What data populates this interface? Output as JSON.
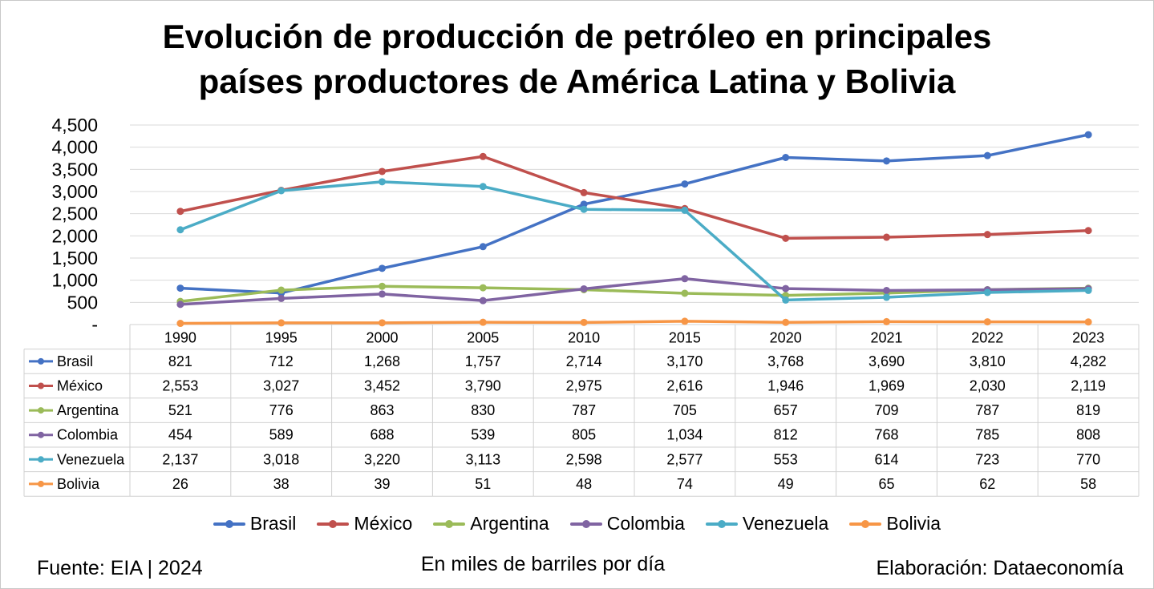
{
  "title_lines": [
    "Evolución de producción de petróleo en principales",
    "países productores de América Latina y Bolivia"
  ],
  "chart_data": {
    "type": "line",
    "categories": [
      "1990",
      "1995",
      "2000",
      "2005",
      "2010",
      "2015",
      "2020",
      "2021",
      "2022",
      "2023"
    ],
    "series": [
      {
        "name": "Brasil",
        "color": "#4472C4",
        "values": [
          821,
          712,
          1268,
          1757,
          2714,
          3170,
          3768,
          3690,
          3810,
          4282
        ],
        "labels": [
          "821",
          "712",
          "1,268",
          "1,757",
          "2,714",
          "3,170",
          "3,768",
          "3,690",
          "3,810",
          "4,282"
        ]
      },
      {
        "name": "México",
        "color": "#C0504D",
        "values": [
          2553,
          3027,
          3452,
          3790,
          2975,
          2616,
          1946,
          1969,
          2030,
          2119
        ],
        "labels": [
          "2,553",
          "3,027",
          "3,452",
          "3,790",
          "2,975",
          "2,616",
          "1,946",
          "1,969",
          "2,030",
          "2,119"
        ]
      },
      {
        "name": "Argentina",
        "color": "#9BBB59",
        "values": [
          521,
          776,
          863,
          830,
          787,
          705,
          657,
          709,
          787,
          819
        ],
        "labels": [
          "521",
          "776",
          "863",
          "830",
          "787",
          "705",
          "657",
          "709",
          "787",
          "819"
        ]
      },
      {
        "name": "Colombia",
        "color": "#8064A2",
        "values": [
          454,
          589,
          688,
          539,
          805,
          1034,
          812,
          768,
          785,
          808
        ],
        "labels": [
          "454",
          "589",
          "688",
          "539",
          "805",
          "1,034",
          "812",
          "768",
          "785",
          "808"
        ]
      },
      {
        "name": "Venezuela",
        "color": "#4BACC6",
        "values": [
          2137,
          3018,
          3220,
          3113,
          2598,
          2577,
          553,
          614,
          723,
          770
        ],
        "labels": [
          "2,137",
          "3,018",
          "3,220",
          "3,113",
          "2,598",
          "2,577",
          "553",
          "614",
          "723",
          "770"
        ]
      },
      {
        "name": "Bolivia",
        "color": "#F79646",
        "values": [
          26,
          38,
          39,
          51,
          48,
          74,
          49,
          65,
          62,
          58
        ],
        "labels": [
          "26",
          "38",
          "39",
          "51",
          "48",
          "74",
          "49",
          "65",
          "62",
          "58"
        ]
      }
    ],
    "ylim": [
      0,
      4500
    ],
    "ytick_values": [
      0,
      500,
      1000,
      1500,
      2000,
      2500,
      3000,
      3500,
      4000,
      4500
    ],
    "ytick_labels": [
      "-",
      "500",
      "1,000",
      "1,500",
      "2,000",
      "2,500",
      "3,000",
      "3,500",
      "4,000",
      "4,500"
    ],
    "grid": true,
    "data_table": true,
    "legend_position": "bottom"
  },
  "footer": {
    "source": "Fuente: EIA | 2024",
    "units": "En miles de barriles por día",
    "credit": "Elaboración: Dataeconomía"
  }
}
